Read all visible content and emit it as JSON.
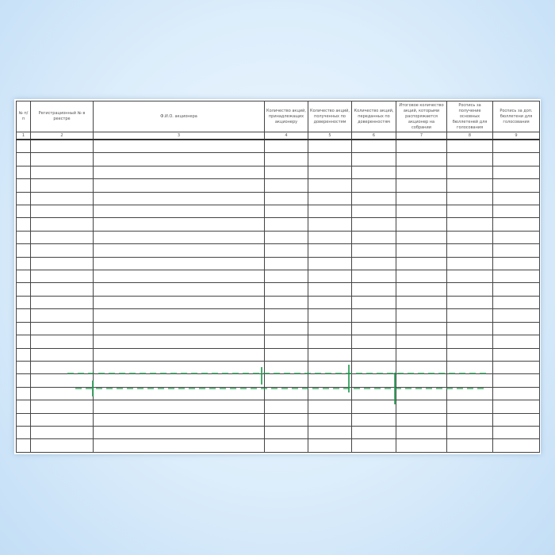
{
  "table": {
    "headers": [
      "№ п/п",
      "Регистрационный № в реестре",
      "Ф.И.О. акционера",
      "Количество акций, принадлежащих акционеру",
      "Количество акций, полученных по доверенностям",
      "Количество акций, переданных по доверенностям",
      "Итоговое количество акций, которыми распоряжается акционер на собрании",
      "Роспись за получение основных бюллетеней для голосования",
      "Роспись за доп. бюллетени для голосования"
    ],
    "column_numbers": [
      "1",
      "2",
      "3",
      "4",
      "5",
      "6",
      "7",
      "8",
      "9"
    ],
    "empty_rows": 24
  },
  "colors": {
    "background": "#dcedfb",
    "watermark": "#1a9a4a"
  }
}
